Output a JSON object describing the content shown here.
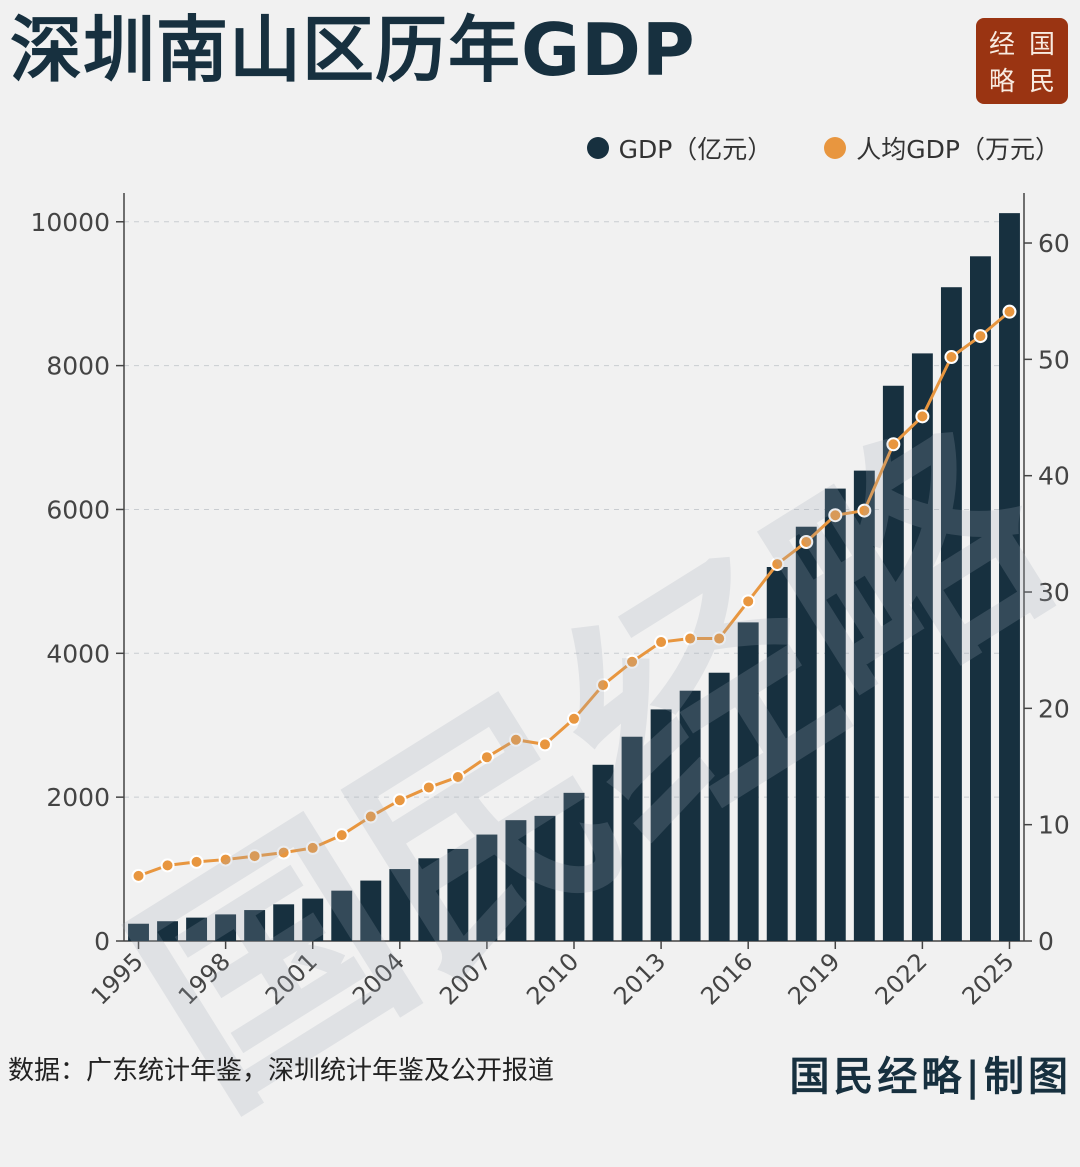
{
  "header": {
    "title": "深圳南山区历年GDP",
    "seal_chars": [
      "经",
      "国",
      "略",
      "民"
    ]
  },
  "legend": {
    "gdp_label": "GDP（亿元）",
    "per_capita_label": "人均GDP（万元）"
  },
  "colors": {
    "bar": "#17303f",
    "line": "#e8963f",
    "seal": "#9a3412"
  },
  "watermark": "国民经略",
  "footer": {
    "source": "数据：广东统计年鉴，深圳统计年鉴及公开报道",
    "brand": "国民经略|制图"
  },
  "chart_data": {
    "type": "bar",
    "title": "深圳南山区历年GDP",
    "categories": [
      "1995",
      "1996",
      "1997",
      "1998",
      "1999",
      "2000",
      "2001",
      "2002",
      "2003",
      "2004",
      "2005",
      "2006",
      "2007",
      "2008",
      "2009",
      "2010",
      "2011",
      "2012",
      "2013",
      "2014",
      "2015",
      "2016",
      "2017",
      "2018",
      "2019",
      "2020",
      "2021",
      "2022",
      "2023",
      "2024",
      "2025"
    ],
    "x_tick_labels": [
      "1995",
      "1998",
      "2001",
      "2004",
      "2007",
      "2010",
      "2013",
      "2016",
      "2019",
      "2022",
      "2025"
    ],
    "series": [
      {
        "name": "GDP（亿元）",
        "axis": "left",
        "type": "bar",
        "values": [
          240,
          275,
          325,
          370,
          430,
          510,
          590,
          700,
          840,
          1000,
          1150,
          1280,
          1480,
          1680,
          1740,
          2060,
          2450,
          2840,
          3220,
          3480,
          3730,
          4430,
          5200,
          5760,
          6290,
          6540,
          7720,
          8170,
          9090,
          9520,
          10120
        ]
      },
      {
        "name": "人均GDP（万元）",
        "axis": "right",
        "type": "line",
        "values": [
          5.6,
          6.5,
          6.8,
          7.0,
          7.3,
          7.6,
          8.0,
          9.1,
          10.7,
          12.1,
          13.2,
          14.1,
          15.8,
          17.3,
          16.9,
          19.1,
          22.0,
          24.0,
          25.7,
          26.0,
          26.0,
          29.2,
          32.4,
          34.3,
          36.6,
          37.0,
          42.7,
          45.1,
          50.2,
          52.0,
          54.1
        ]
      }
    ],
    "ylim_left": [
      0,
      10400
    ],
    "yticks_left": [
      0,
      2000,
      4000,
      6000,
      8000,
      10000
    ],
    "ylim_right": [
      0,
      64.3
    ],
    "yticks_right": [
      0,
      10,
      20,
      30,
      40,
      50,
      60
    ],
    "grid": true,
    "legend_position": "top-right"
  }
}
